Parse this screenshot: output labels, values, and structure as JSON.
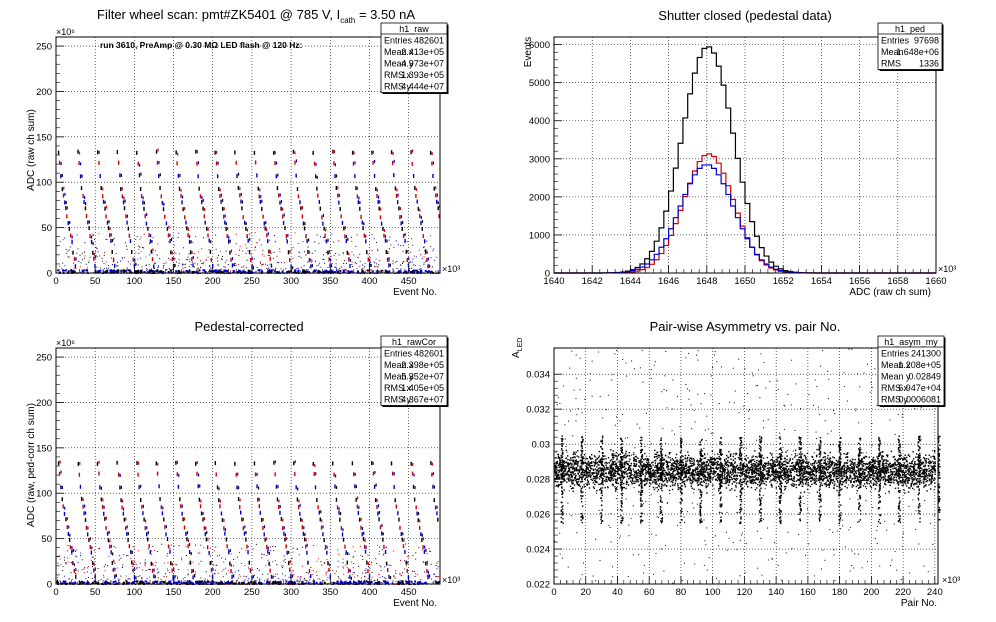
{
  "chart_data": [
    {
      "type": "scatter",
      "title": "Filter wheel scan: pmt#ZK5401 @   785 V, I",
      "title_sub": "cath",
      "title_tail": " = 3.50 nA",
      "annotation": "run 3610, PreAmp @ 0.30 MΩ LED flash @  120 Hz:",
      "xlabel": "Event No.",
      "ylabel": "ADC (raw ch sum)",
      "x_exponent": "×10³",
      "y_exponent": "×10⁶",
      "xlim": [
        0,
        490
      ],
      "ylim": [
        0,
        260
      ],
      "xticks": [
        0,
        50,
        100,
        150,
        200,
        250,
        300,
        350,
        400,
        450
      ],
      "yticks": [
        0,
        50,
        100,
        150,
        200,
        250
      ],
      "grid": true,
      "stats": {
        "name": "h1_raw",
        "rows": [
          [
            "Entries",
            "482601"
          ],
          [
            "Mean x",
            "2.413e+05"
          ],
          [
            "Mean y",
            "4.973e+07"
          ],
          [
            "RMS x",
            "1.393e+05"
          ],
          [
            "RMS y",
            "4.444e+07"
          ]
        ]
      },
      "step_levels": [
        133,
        121,
        107,
        93,
        85,
        78,
        71,
        62,
        55,
        49,
        41,
        35,
        23,
        15,
        8
      ],
      "period": 25,
      "series_colors": [
        "#000000",
        "#d40000",
        "#0000d4"
      ]
    },
    {
      "type": "histogram",
      "title": "Shutter closed (pedestal data)",
      "xlabel": "ADC (raw ch sum)",
      "ylabel": "Events",
      "x_exponent": "×10³",
      "xlim": [
        1640,
        1660
      ],
      "ylim": [
        0,
        6200
      ],
      "xticks": [
        1640,
        1642,
        1644,
        1646,
        1648,
        1650,
        1652,
        1654,
        1656,
        1658,
        1660
      ],
      "yticks": [
        0,
        1000,
        2000,
        3000,
        4000,
        5000,
        6000
      ],
      "grid": true,
      "stats": {
        "name": "h1_ped",
        "rows": [
          [
            "Entries",
            "97698"
          ],
          [
            "Mean",
            "1.648e+06"
          ],
          [
            "RMS",
            "1336"
          ]
        ]
      },
      "bin_width": 0.25,
      "series": [
        {
          "color": "#000000",
          "mean": 1648.05,
          "sigma": 1.35,
          "peak": 5950
        },
        {
          "color": "#d40000",
          "mean": 1648.1,
          "sigma": 1.3,
          "peak": 3130
        },
        {
          "color": "#0000d4",
          "mean": 1648.0,
          "sigma": 1.4,
          "peak": 2850
        }
      ]
    },
    {
      "type": "scatter",
      "title": "Pedestal-corrected",
      "xlabel": "Event No.",
      "ylabel": "ADC (raw, ped-corr ch sum)",
      "x_exponent": "×10³",
      "y_exponent": "×10⁶",
      "xlim": [
        0,
        490
      ],
      "ylim": [
        0,
        260
      ],
      "xticks": [
        0,
        50,
        100,
        150,
        200,
        250,
        300,
        350,
        400,
        450
      ],
      "yticks": [
        0,
        50,
        100,
        150,
        200,
        250
      ],
      "grid": true,
      "stats": {
        "name": "h1_rawCor",
        "rows": [
          [
            "Entries",
            "482601"
          ],
          [
            "Mean x",
            "2.398e+05"
          ],
          [
            "Mean y",
            "5.352e+07"
          ],
          [
            "RMS x",
            "1.405e+05"
          ],
          [
            "RMS y",
            "4.367e+07"
          ]
        ]
      },
      "step_levels": [
        133,
        121,
        107,
        93,
        85,
        78,
        71,
        62,
        55,
        49,
        41,
        35,
        23,
        15,
        8
      ],
      "period": 25,
      "series_colors": [
        "#000000",
        "#d40000",
        "#0000d4"
      ]
    },
    {
      "type": "scatter",
      "title": "Pair-wise Asymmetry vs. pair No.",
      "xlabel": "Pair No.",
      "ylabel": "A",
      "ylabel_sub": "LED",
      "x_exponent": "×10³",
      "xlim": [
        0,
        242
      ],
      "ylim": [
        0.022,
        0.0355
      ],
      "xticks": [
        0,
        20,
        40,
        60,
        80,
        100,
        120,
        140,
        160,
        180,
        200,
        220,
        240
      ],
      "yticks": [
        0.022,
        0.024,
        0.026,
        0.028,
        0.03,
        0.032,
        0.034
      ],
      "ytick_labels": [
        "0.022",
        "0.024",
        "0.026",
        "0.028",
        "0.03",
        "0.032",
        "0.034"
      ],
      "grid": true,
      "stats": {
        "name": "h1_asym_my",
        "rows": [
          [
            "Entries",
            "241300"
          ],
          [
            "Mean x",
            "1.208e+05"
          ],
          [
            "Mean y",
            "0.02849"
          ],
          [
            "RMS x",
            "6.947e+04"
          ],
          [
            "RMS y",
            "0.0006081"
          ]
        ]
      },
      "band_center": 0.0285,
      "band_halfwidth": 0.0008,
      "spike_period": 12.5,
      "spike_top": 0.0305,
      "spike_bottom": 0.0255,
      "series_colors": [
        "#000000"
      ]
    }
  ]
}
